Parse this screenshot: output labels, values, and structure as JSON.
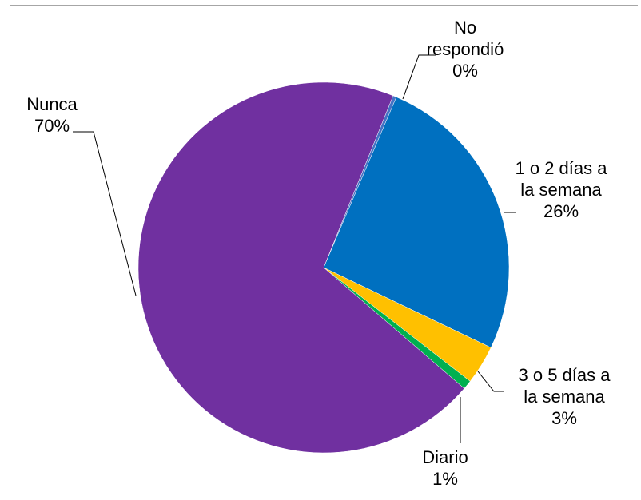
{
  "chart_data": {
    "type": "pie",
    "title": "",
    "slices": [
      {
        "name": "No respondió",
        "lines": [
          "No",
          "respondió"
        ],
        "percent_label": "0%",
        "value": 0.3,
        "color": "#4472C4"
      },
      {
        "name": "1 o 2 días a la semana",
        "lines": [
          "1 o 2 días a",
          "la semana"
        ],
        "percent_label": "26%",
        "value": 25.7,
        "color": "#0070C0"
      },
      {
        "name": "3 o 5 días a la semana",
        "lines": [
          "3 o 5 días a",
          "la semana"
        ],
        "percent_label": "3%",
        "value": 3.4,
        "color": "#FFC000"
      },
      {
        "name": "Diario",
        "lines": [
          "Diario"
        ],
        "percent_label": "1%",
        "value": 0.8,
        "color": "#00B050"
      },
      {
        "name": "Nunca",
        "lines": [
          "Nunca"
        ],
        "percent_label": "70%",
        "value": 69.8,
        "color": "#7030A0"
      }
    ],
    "start_angle_deg": 22,
    "direction": "clockwise",
    "legend": "none",
    "data_labels": "outside-with-leader-lines"
  }
}
